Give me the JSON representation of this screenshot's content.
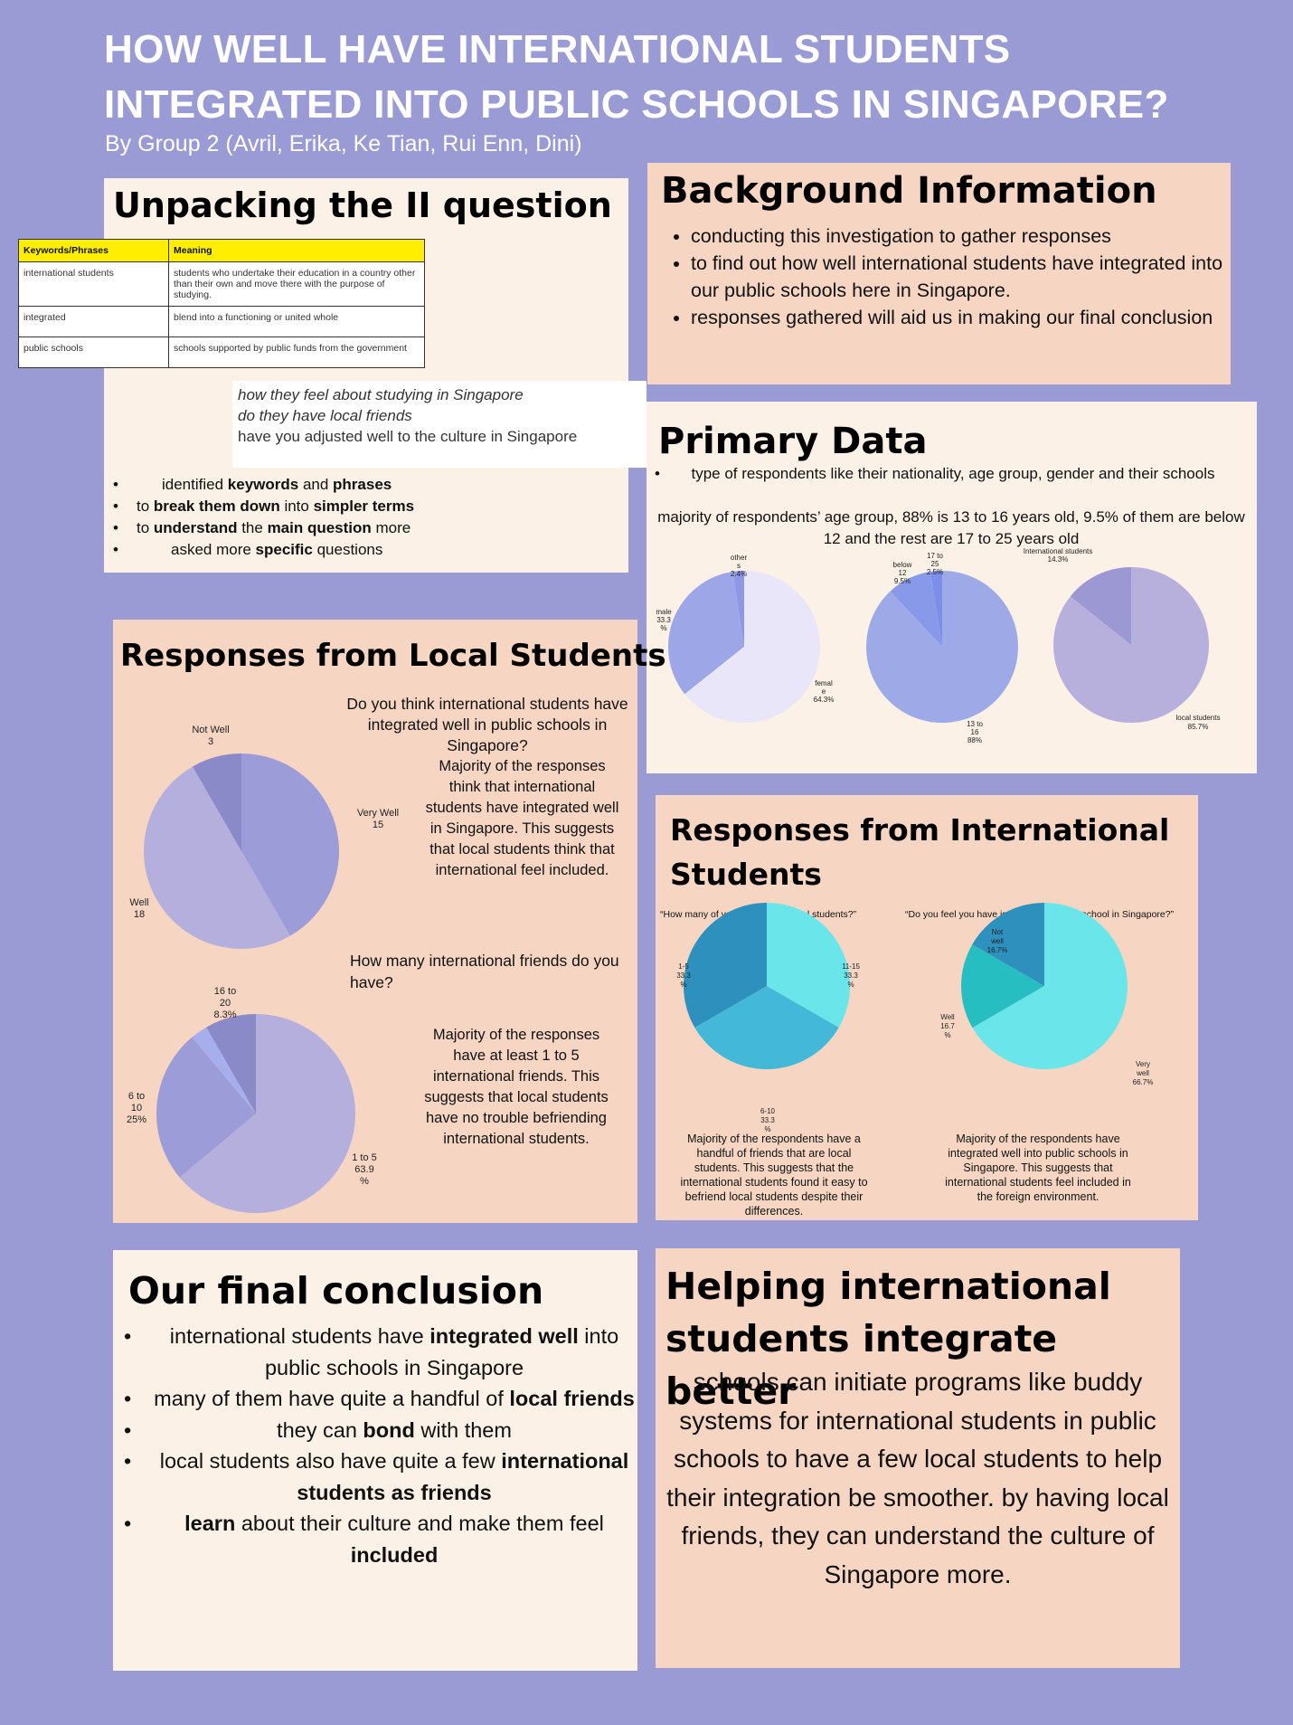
{
  "header": {
    "title": "HOW WELL HAVE INTERNATIONAL STUDENTS INTEGRATED INTO PUBLIC SCHOOLS IN SINGAPORE?",
    "byline": "By Group 2 (Avril, Erika, Ke Tian, Rui Enn, Dini)"
  },
  "unpacking": {
    "title": "Unpacking the II question",
    "table": {
      "headers": [
        "Keywords/Phrases",
        "Meaning"
      ],
      "rows": [
        [
          "international students",
          "students who undertake their education in a country other than their own and move there with the purpose of studying."
        ],
        [
          "integrated",
          "blend into a functioning or united whole"
        ],
        [
          "public schools",
          "schools supported by public funds from the government"
        ]
      ]
    },
    "specific_questions": [
      "how they feel about studying in Singapore",
      "do they have local friends",
      "have you adjusted well to the culture in Singapore"
    ],
    "bullets": [
      {
        "a": "identified ",
        "b": "keywords",
        "c": " and ",
        "d": "phrases",
        "e": ""
      },
      {
        "a": "to ",
        "b": "break them down",
        "c": " into ",
        "d": "simpler terms",
        "e": ""
      },
      {
        "a": "to ",
        "b": "understand",
        "c": " the ",
        "d": "main question",
        "e": " more"
      },
      {
        "a": "asked more ",
        "b": "specific",
        "c": " questions",
        "d": "",
        "e": ""
      }
    ]
  },
  "background": {
    "title": "Background Information",
    "bullets": [
      "conducting this investigation to gather responses",
      "to find out how well international students have integrated into our public schools here in Singapore.",
      "responses gathered will aid us in making our final conclusion"
    ]
  },
  "primary": {
    "title": "Primary Data",
    "bullet": "type of respondents like their nationality, age group, gender and their schools",
    "note": "majority of respondents’ age group, 88% is 13 to 16 years old, 9.5% of them are below 12 and the rest are 17 to 25 years old"
  },
  "local": {
    "title": "Responses from Local Students",
    "q1": "Do you think international students have integrated well in public schools in Singapore?",
    "q1_caption": "Majority of the responses think that international students have integrated well in Singapore. This suggests that local students think that international feel included.",
    "q2": "How many international friends do you have?",
    "q2_caption": "Majority of the responses have at least 1 to 5 international friends. This suggests that local students have no trouble befriending international students."
  },
  "intl": {
    "title": "Responses from International Students",
    "q1": "“How many of your friends are local students?”",
    "q1_caption": "Majority of the respondents have a handful of friends that are local students. This suggests that the international students found it easy to befriend local students despite their differences.",
    "q2": "“Do you feel you have integrated well into school in Singapore?”",
    "q2_caption": "Majority of the respondents have integrated well into public schools in Singapore. This suggests that international students feel included in the foreign environment."
  },
  "conclusion": {
    "title": "Our final conclusion",
    "bullets": [
      {
        "a": "international students have ",
        "b": "integrated well",
        "c": " into public schools in Singapore"
      },
      {
        "a": "many of them have quite a handful of ",
        "b": "local friends",
        "c": ""
      },
      {
        "a": "they can ",
        "b": "bond",
        "c": " with them"
      },
      {
        "a": "local students also have quite a few ",
        "b": "international students as friends",
        "c": ""
      },
      {
        "a": "",
        "b": "learn",
        "c": " about their culture and make them feel ",
        "d": "included"
      }
    ]
  },
  "helping": {
    "title": "Helping international students integrate better",
    "text": "schools can initiate programs like buddy systems for international students in public schools to have a few local students to help their integration be smoother. by having local friends, they can understand the culture of Singapore more."
  },
  "chart_data": [
    {
      "type": "pie",
      "id": "gender",
      "slices": [
        {
          "label": "other",
          "value": 2.4,
          "display": "other s 2.4%",
          "color": "#8e96e6"
        },
        {
          "label": "male",
          "value": 33.3,
          "display": "male 33.3 %",
          "color": "#9da7e8"
        },
        {
          "label": "female",
          "value": 64.3,
          "display": "femal e 64.3%",
          "color": "#e8e6f8"
        }
      ]
    },
    {
      "type": "pie",
      "id": "age",
      "slices": [
        {
          "label": "17 to 25",
          "value": 2.5,
          "display": "17 to 25 2.5%",
          "color": "#7d8ee8"
        },
        {
          "label": "below 12",
          "value": 9.5,
          "display": "below 12 9.5%",
          "color": "#8899ea"
        },
        {
          "label": "13 to 16",
          "value": 88,
          "display": "13 to 16 88%",
          "color": "#9eaae8"
        }
      ]
    },
    {
      "type": "pie",
      "id": "nationality",
      "slices": [
        {
          "label": "international students",
          "value": 14.3,
          "display": "International students 14.3%",
          "color": "#9c98d4"
        },
        {
          "label": "local students",
          "value": 85.7,
          "display": "local students 85.7%",
          "color": "#b8b0dc"
        }
      ]
    },
    {
      "type": "pie",
      "id": "local_integration",
      "slices": [
        {
          "label": "Very Well",
          "value": 15,
          "display": "Very Well 15",
          "color": "#9c9cd8"
        },
        {
          "label": "Well",
          "value": 18,
          "display": "Well 18",
          "color": "#b4afdc"
        },
        {
          "label": "Not Well",
          "value": 3,
          "display": "Not Well 3",
          "color": "#8a8ac8"
        }
      ]
    },
    {
      "type": "pie",
      "id": "local_friends",
      "slices": [
        {
          "label": "1 to 5",
          "value": 63.9,
          "display": "1 to 5 63.9 %",
          "color": "#b4afdc"
        },
        {
          "label": "6 to 10",
          "value": 25,
          "display": "6 to 10 25%",
          "color": "#9c9cd8"
        },
        {
          "label": "11 to 15",
          "value": 2.8,
          "display": "",
          "color": "#a6aeec"
        },
        {
          "label": "16 to 20",
          "value": 8.3,
          "display": "16 to 20 8.3%",
          "color": "#8a8ac8"
        }
      ]
    },
    {
      "type": "pie",
      "id": "intl_local_friends",
      "slices": [
        {
          "label": "11-15",
          "value": 33.3,
          "display": "11-15 33.3 %",
          "color": "#6ae5ea"
        },
        {
          "label": "6-10",
          "value": 33.3,
          "display": "6-10 33.3 %",
          "color": "#43b8d8"
        },
        {
          "label": "1-5",
          "value": 33.3,
          "display": "1-5 33.3 %",
          "color": "#2d90bd"
        }
      ]
    },
    {
      "type": "pie",
      "id": "intl_integration",
      "slices": [
        {
          "label": "Very well",
          "value": 66.7,
          "display": "Very well 66.7%",
          "color": "#6ae5ea"
        },
        {
          "label": "Well",
          "value": 16.7,
          "display": "Well 16.7 %",
          "color": "#27bec2"
        },
        {
          "label": "Not well",
          "value": 16.7,
          "display": "Not well 16.7%",
          "color": "#2d90bd"
        }
      ]
    }
  ]
}
